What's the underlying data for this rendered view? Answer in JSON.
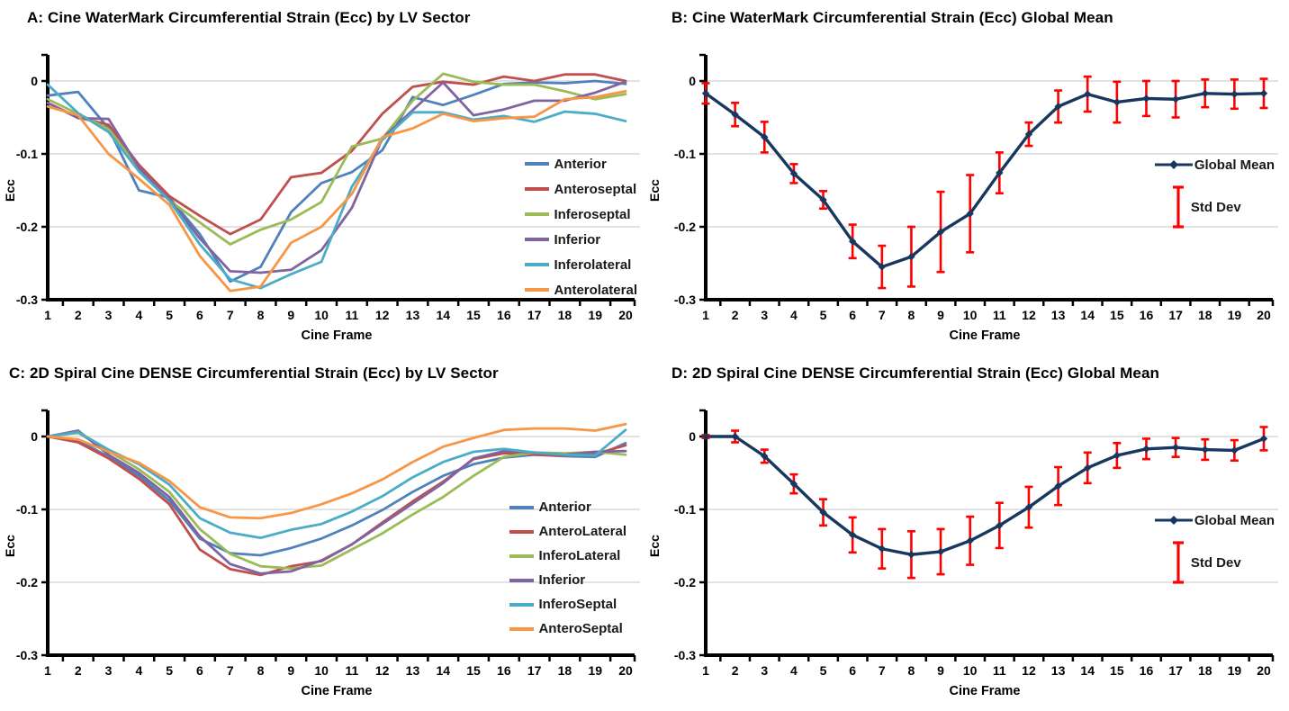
{
  "page": {
    "background": "#FFFFFF"
  },
  "colors": {
    "axis": "#000000",
    "gridline": "#D9D9D9",
    "tick_label": "#000000",
    "error_bar": "#FF0000",
    "global_mean_line": "#17375E",
    "legend_text": "#1A1A1A",
    "title_text": "#000000"
  },
  "chart_data": [
    {
      "id": "A",
      "type": "line",
      "title": "A: Cine WaterMark Circumferential Strain (Ecc) by LV Sector",
      "xlabel": "Cine Frame",
      "ylabel": "Ecc",
      "x": [
        1,
        2,
        3,
        4,
        5,
        6,
        7,
        8,
        9,
        10,
        11,
        12,
        13,
        14,
        15,
        16,
        17,
        18,
        19,
        20
      ],
      "yticks": [
        0,
        -0.1,
        -0.2,
        -0.3
      ],
      "ylim": [
        0.04,
        -0.3
      ],
      "grid": true,
      "legend_position": "inside-right",
      "series": [
        {
          "name": "Anterior",
          "color": "#4F81BD",
          "values": [
            -0.02,
            -0.015,
            -0.065,
            -0.15,
            -0.16,
            -0.21,
            -0.275,
            -0.255,
            -0.18,
            -0.14,
            -0.125,
            -0.095,
            -0.022,
            -0.033,
            -0.019,
            -0.004,
            -0.002,
            -0.003,
            0.0,
            -0.004
          ]
        },
        {
          "name": "Anteroseptal",
          "color": "#C0504D",
          "values": [
            -0.03,
            -0.05,
            -0.06,
            -0.115,
            -0.158,
            -0.185,
            -0.21,
            -0.19,
            -0.132,
            -0.126,
            -0.096,
            -0.045,
            -0.008,
            -0.001,
            -0.005,
            0.006,
            0.0,
            0.009,
            0.009,
            0.0
          ]
        },
        {
          "name": "Inferoseptal",
          "color": "#9BBB59",
          "values": [
            -0.025,
            -0.045,
            -0.066,
            -0.12,
            -0.164,
            -0.194,
            -0.224,
            -0.204,
            -0.19,
            -0.166,
            -0.09,
            -0.079,
            -0.027,
            0.01,
            -0.001,
            -0.005,
            -0.005,
            -0.014,
            -0.025,
            -0.018
          ]
        },
        {
          "name": "Inferior",
          "color": "#8064A2",
          "values": [
            -0.03,
            -0.051,
            -0.052,
            -0.119,
            -0.163,
            -0.216,
            -0.261,
            -0.263,
            -0.259,
            -0.232,
            -0.174,
            -0.079,
            -0.04,
            -0.002,
            -0.047,
            -0.039,
            -0.027,
            -0.027,
            -0.016,
            -0.001
          ]
        },
        {
          "name": "Inferolateral",
          "color": "#4BACC6",
          "values": [
            -0.005,
            -0.044,
            -0.07,
            -0.124,
            -0.164,
            -0.224,
            -0.272,
            -0.284,
            -0.265,
            -0.248,
            -0.145,
            -0.081,
            -0.043,
            -0.043,
            -0.053,
            -0.048,
            -0.056,
            -0.042,
            -0.045,
            -0.055
          ]
        },
        {
          "name": "Anterolateral",
          "color": "#F79646",
          "values": [
            -0.035,
            -0.047,
            -0.1,
            -0.134,
            -0.17,
            -0.24,
            -0.288,
            -0.282,
            -0.222,
            -0.2,
            -0.155,
            -0.077,
            -0.065,
            -0.045,
            -0.055,
            -0.051,
            -0.049,
            -0.025,
            -0.022,
            -0.014
          ]
        }
      ]
    },
    {
      "id": "B",
      "type": "line",
      "title": "B: Cine WaterMark Circumferential Strain (Ecc) Global Mean",
      "xlabel": "Cine Frame",
      "ylabel": "Ecc",
      "x": [
        1,
        2,
        3,
        4,
        5,
        6,
        7,
        8,
        9,
        10,
        11,
        12,
        13,
        14,
        15,
        16,
        17,
        18,
        19,
        20
      ],
      "yticks": [
        0,
        -0.1,
        -0.2,
        -0.3
      ],
      "ylim": [
        0.04,
        -0.3
      ],
      "grid": true,
      "legend_position": "inside-right",
      "series": [
        {
          "name": "Global Mean",
          "color": "#17375E",
          "marker": "diamond",
          "values": [
            -0.017,
            -0.046,
            -0.077,
            -0.127,
            -0.163,
            -0.22,
            -0.255,
            -0.241,
            -0.207,
            -0.182,
            -0.126,
            -0.073,
            -0.035,
            -0.018,
            -0.029,
            -0.024,
            -0.025,
            -0.017,
            -0.018,
            -0.017
          ],
          "std_dev": [
            0.014,
            0.016,
            0.021,
            0.013,
            0.012,
            0.023,
            0.029,
            0.041,
            0.055,
            0.053,
            0.028,
            0.016,
            0.022,
            0.024,
            0.028,
            0.024,
            0.025,
            0.019,
            0.02,
            0.02
          ]
        }
      ],
      "legend_extra": {
        "label": "Std Dev",
        "color": "#FF0000"
      }
    },
    {
      "id": "C",
      "type": "line",
      "title": "C: 2D Spiral Cine DENSE Circumferential Strain (Ecc) by LV Sector",
      "xlabel": "Cine Frame",
      "ylabel": "Ecc",
      "x": [
        1,
        2,
        3,
        4,
        5,
        6,
        7,
        8,
        9,
        10,
        11,
        12,
        13,
        14,
        15,
        16,
        17,
        18,
        19,
        20
      ],
      "yticks": [
        0,
        -0.1,
        -0.2,
        -0.3
      ],
      "ylim": [
        0.04,
        -0.3
      ],
      "grid": true,
      "legend_position": "inside-right",
      "series": [
        {
          "name": "Anterior",
          "color": "#4F81BD",
          "values": [
            0.0,
            -0.005,
            -0.028,
            -0.054,
            -0.088,
            -0.14,
            -0.16,
            -0.163,
            -0.153,
            -0.14,
            -0.122,
            -0.101,
            -0.076,
            -0.054,
            -0.038,
            -0.029,
            -0.025,
            -0.027,
            -0.028,
            -0.009
          ]
        },
        {
          "name": "AnteroLateral",
          "color": "#C0504D",
          "values": [
            0.0,
            -0.008,
            -0.03,
            -0.058,
            -0.093,
            -0.155,
            -0.182,
            -0.19,
            -0.178,
            -0.171,
            -0.148,
            -0.118,
            -0.089,
            -0.062,
            -0.031,
            -0.023,
            -0.025,
            -0.026,
            -0.024,
            -0.012
          ]
        },
        {
          "name": "InferoLateral",
          "color": "#9BBB59",
          "values": [
            0.0,
            0.005,
            -0.02,
            -0.045,
            -0.076,
            -0.127,
            -0.161,
            -0.178,
            -0.181,
            -0.177,
            -0.155,
            -0.133,
            -0.107,
            -0.083,
            -0.054,
            -0.028,
            -0.022,
            -0.023,
            -0.021,
            -0.025
          ]
        },
        {
          "name": "Inferior",
          "color": "#8064A2",
          "values": [
            0.0,
            0.008,
            -0.025,
            -0.05,
            -0.083,
            -0.137,
            -0.175,
            -0.188,
            -0.185,
            -0.17,
            -0.148,
            -0.12,
            -0.092,
            -0.064,
            -0.03,
            -0.02,
            -0.022,
            -0.025,
            -0.021,
            -0.02
          ]
        },
        {
          "name": "InferoSeptal",
          "color": "#4BACC6",
          "values": [
            0.0,
            0.006,
            -0.018,
            -0.038,
            -0.066,
            -0.112,
            -0.132,
            -0.139,
            -0.128,
            -0.12,
            -0.103,
            -0.082,
            -0.056,
            -0.035,
            -0.021,
            -0.017,
            -0.022,
            -0.025,
            -0.026,
            0.009
          ]
        },
        {
          "name": "AnteroSeptal",
          "color": "#F79646",
          "values": [
            0.0,
            -0.004,
            -0.021,
            -0.036,
            -0.061,
            -0.097,
            -0.111,
            -0.112,
            -0.105,
            -0.093,
            -0.078,
            -0.059,
            -0.035,
            -0.014,
            -0.002,
            0.009,
            0.011,
            0.011,
            0.008,
            0.017
          ]
        }
      ]
    },
    {
      "id": "D",
      "type": "line",
      "title": "D: 2D Spiral Cine DENSE Circumferential Strain (Ecc) Global Mean",
      "xlabel": "Cine Frame",
      "ylabel": "Ecc",
      "x": [
        1,
        2,
        3,
        4,
        5,
        6,
        7,
        8,
        9,
        10,
        11,
        12,
        13,
        14,
        15,
        16,
        17,
        18,
        19,
        20
      ],
      "yticks": [
        0,
        -0.1,
        -0.2,
        -0.3
      ],
      "ylim": [
        0.04,
        -0.3
      ],
      "grid": true,
      "legend_position": "inside-right",
      "series": [
        {
          "name": "Global Mean",
          "color": "#17375E",
          "marker": "diamond",
          "values": [
            0.0,
            0.0,
            -0.027,
            -0.065,
            -0.104,
            -0.135,
            -0.154,
            -0.162,
            -0.158,
            -0.143,
            -0.122,
            -0.097,
            -0.068,
            -0.043,
            -0.026,
            -0.017,
            -0.015,
            -0.018,
            -0.019,
            -0.003
          ],
          "std_dev": [
            0.002,
            0.008,
            0.009,
            0.013,
            0.018,
            0.024,
            0.027,
            0.032,
            0.031,
            0.033,
            0.031,
            0.028,
            0.026,
            0.021,
            0.017,
            0.014,
            0.013,
            0.014,
            0.014,
            0.016
          ]
        }
      ],
      "legend_extra": {
        "label": "Std Dev",
        "color": "#FF0000"
      }
    }
  ]
}
